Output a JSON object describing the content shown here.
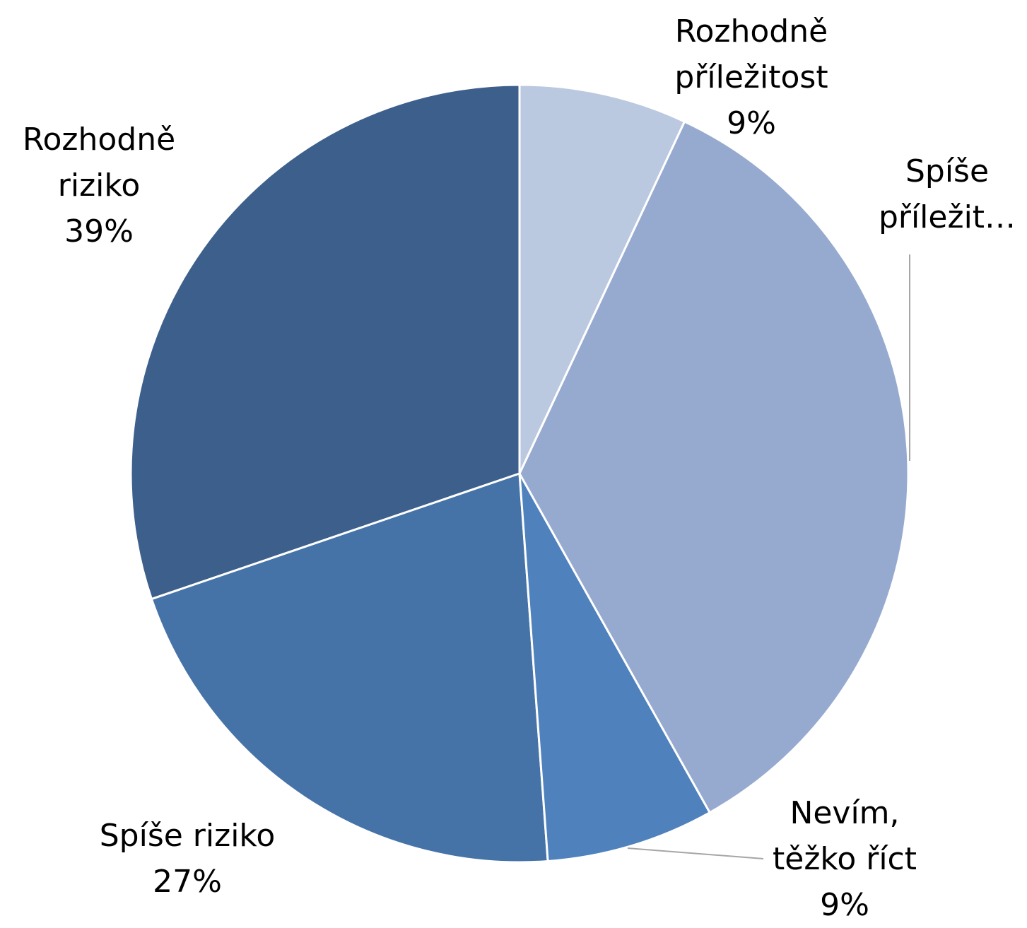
{
  "chart_data": {
    "type": "pie",
    "categories": [
      "Rozhodně příležitost",
      "Spíše příležit…",
      "Nevím, těžko říct",
      "Spíše riziko",
      "Rozhodně riziko"
    ],
    "values": [
      9,
      45,
      9,
      27,
      39
    ],
    "value_labels": [
      "9%",
      null,
      "9%",
      "27%",
      "39%"
    ],
    "colors": [
      "#bac8e0",
      "#96aad0",
      "#4f81bd",
      "#4673a7",
      "#3d5f8c"
    ]
  }
}
